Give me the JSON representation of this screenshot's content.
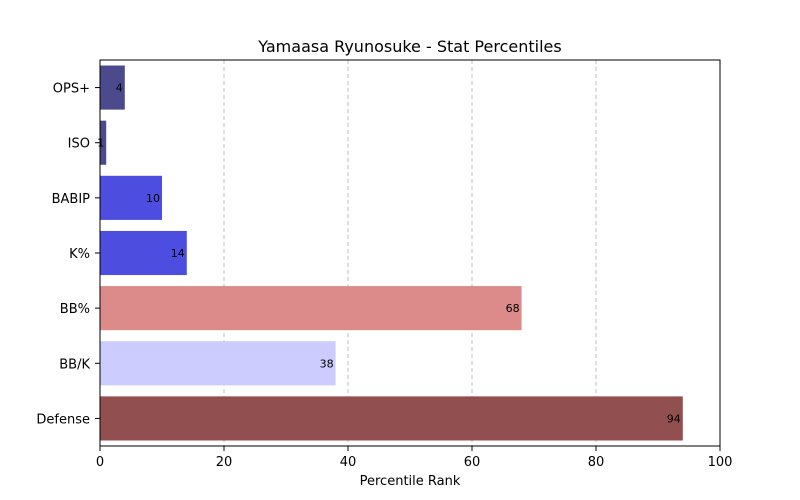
{
  "chart_data": {
    "type": "bar",
    "orientation": "horizontal",
    "title": "Yamaasa Ryunosuke - Stat Percentiles",
    "xlabel": "Percentile Rank",
    "ylabel": "",
    "xlim": [
      0,
      100
    ],
    "xticks": [
      0,
      20,
      40,
      60,
      80,
      100
    ],
    "grid": "x-dashed",
    "categories": [
      "OPS+",
      "ISO",
      "BABIP",
      "K%",
      "BB%",
      "BB/K",
      "Defense"
    ],
    "values": [
      4,
      1,
      10,
      14,
      68,
      38,
      94
    ],
    "colors": [
      "#4a4a8c",
      "#4a4a8c",
      "#4d4ddf",
      "#4d4ddf",
      "#dc8a8a",
      "#ccccff",
      "#924f4f"
    ]
  }
}
